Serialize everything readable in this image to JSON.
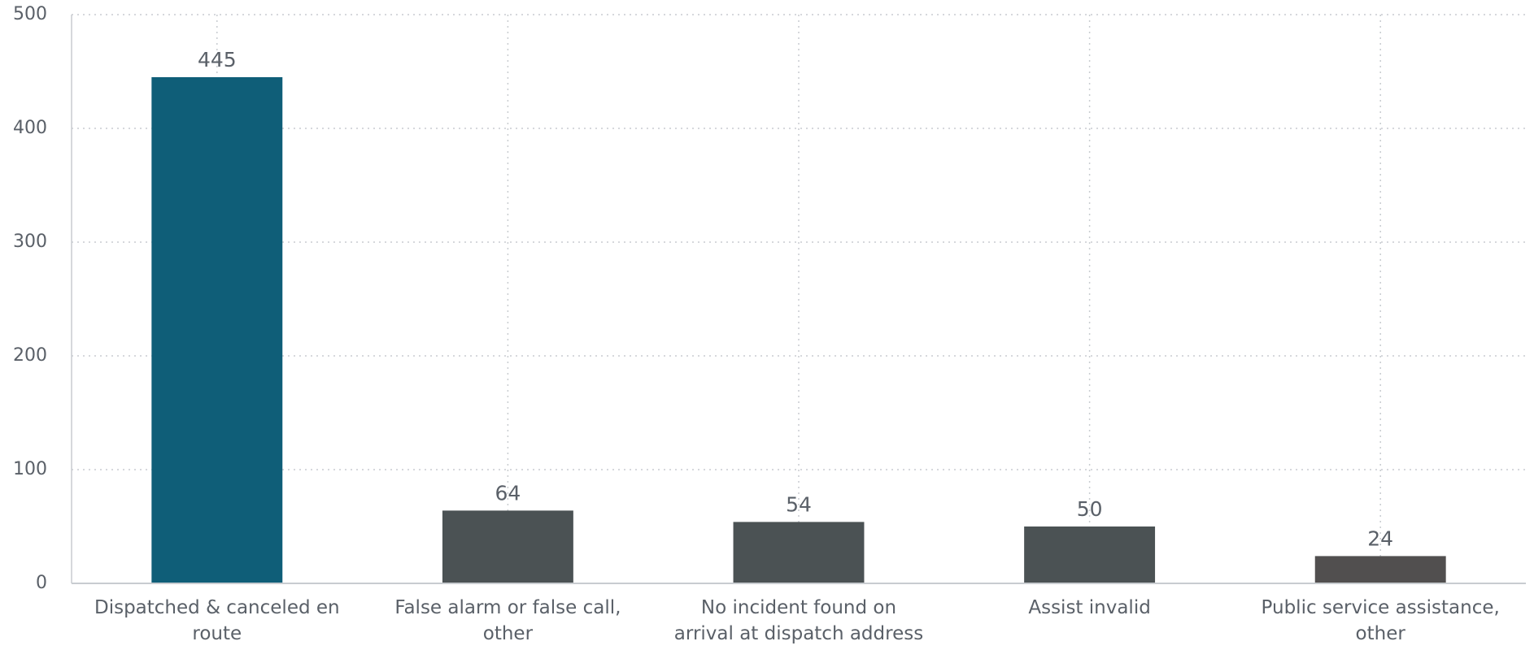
{
  "chart_data": {
    "type": "bar",
    "categories": [
      "Dispatched & canceled en route",
      "False alarm or false call, other",
      "No incident found on arrival at dispatch address",
      "Assist invalid",
      "Public service assistance, other"
    ],
    "values": [
      445,
      64,
      54,
      50,
      24
    ],
    "colors": [
      "#0f5e78",
      "#4b5254",
      "#4b5254",
      "#4b5254",
      "#514f4f"
    ],
    "ylim": [
      0,
      500
    ],
    "yticks": [
      0,
      100,
      200,
      300,
      400,
      500
    ],
    "grid": true
  }
}
